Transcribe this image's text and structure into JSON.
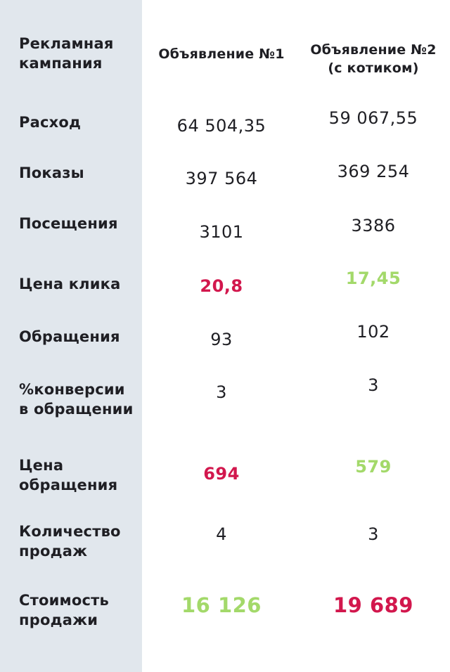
{
  "header": {
    "campaign_label": "Рекламная кампания",
    "col1": "Объявление №1",
    "col2_line1": "Объявление №2",
    "col2_line2": "(с котиком)"
  },
  "rows": [
    {
      "label": "Расход",
      "v1": "64 504,35",
      "v2": "59 067,55"
    },
    {
      "label": "Показы",
      "v1": "397 564",
      "v2": "369 254"
    },
    {
      "label": "Посещения",
      "v1": "3101",
      "v2": "3386"
    },
    {
      "label": "Цена клика",
      "v1": "20,8",
      "v2": "17,45"
    },
    {
      "label": "Обращения",
      "v1": "93",
      "v2": "102"
    },
    {
      "label_line1": "%конверсии",
      "label_line2": "в обращении",
      "v1": "3",
      "v2": "3"
    },
    {
      "label_line1": "Цена",
      "label_line2": "обращения",
      "v1": "694",
      "v2": "579"
    },
    {
      "label_line1": "Количество",
      "label_line2": "продаж",
      "v1": "4",
      "v2": "3"
    },
    {
      "label_line1": "Стоимость",
      "label_line2": "продажи",
      "v1": "16 126",
      "v2": "19 689"
    }
  ],
  "colors": {
    "worse": "#d2174d",
    "better": "#a3d96a",
    "sidebar": "#e1e7ed",
    "text": "#1f1f24"
  }
}
